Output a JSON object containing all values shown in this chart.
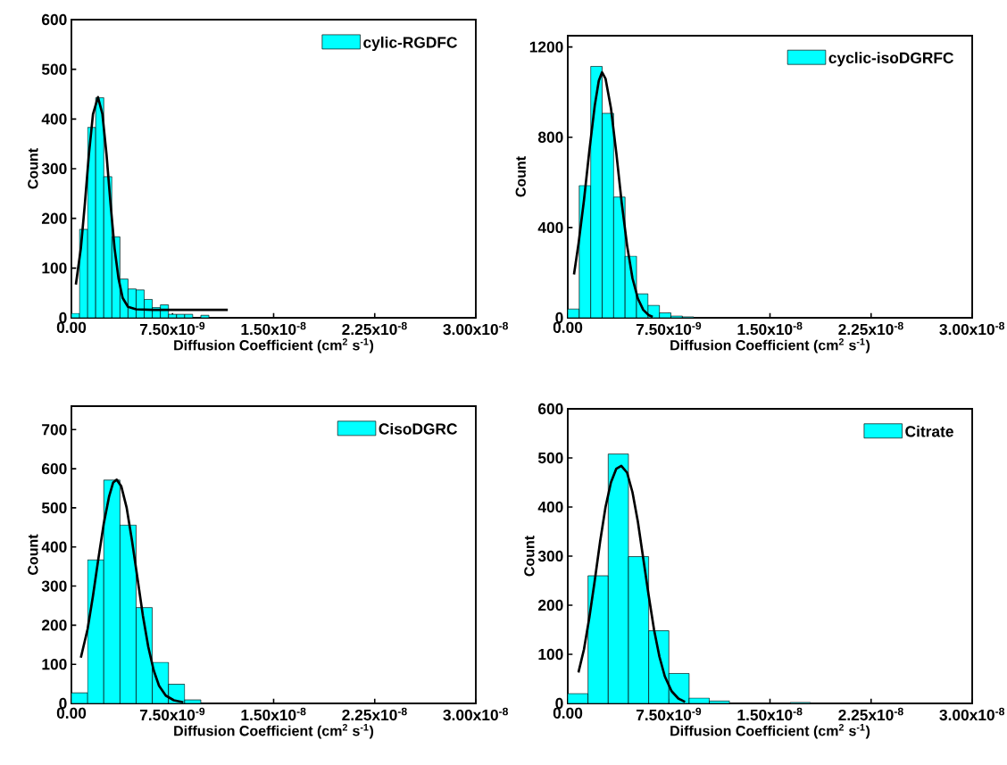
{
  "chart_data": [
    {
      "type": "histogram",
      "xlabel": "Diffusion Coefficient (cm$^{2}$ s$^{-1}$)",
      "ylabel": "Count",
      "legend": "top right",
      "xlim": [
        0,
        3e-08
      ],
      "ylim": [
        0,
        600
      ],
      "xticks": [
        {
          "value": 0,
          "label": "0.00"
        },
        {
          "value": 7.5e-09,
          "label": "7.50x10$^{-9}$"
        },
        {
          "value": 1.5e-08,
          "label": "1.50x10$^{-8}$"
        },
        {
          "value": 2.25e-08,
          "label": "2.25x10$^{-8}$"
        },
        {
          "value": 3e-08,
          "label": "3.00x10$^{-8}$"
        }
      ],
      "yticks": [
        0,
        100,
        200,
        300,
        400,
        500,
        600
      ],
      "series": [
        {
          "type": "histogram",
          "name": "cylic-RGDFC",
          "color": "#00ffff",
          "bins": [
            0,
            6e-10,
            1.2e-09,
            1.8e-09,
            2.4e-09,
            3e-09,
            3.6e-09,
            4.2e-09,
            4.8e-09,
            5.4e-09,
            6e-09,
            6.6e-09,
            7.2e-09,
            7.8e-09,
            8.4e-09,
            9e-09,
            9.6e-09,
            1.02e-08
          ],
          "values": [
            9,
            178,
            383,
            443,
            284,
            163,
            78,
            58,
            56,
            37,
            21,
            26,
            7,
            7,
            7,
            0,
            5
          ]
        },
        {
          "type": "line",
          "color": "#000000",
          "x": [
            3.3e-10,
            7e-10,
            1e-09,
            1.3e-09,
            1.6e-09,
            1.97e-09,
            2.3e-09,
            2.6e-09,
            2.9e-09,
            3.2e-09,
            3.5e-09,
            3.8e-09,
            4.2e-09,
            4.8e-09,
            6e-09,
            8e-09,
            1.16e-08
          ],
          "values": [
            67,
            140,
            230,
            330,
            410,
            444,
            410,
            330,
            230,
            140,
            78,
            40,
            22,
            17,
            16,
            16,
            16
          ]
        }
      ]
    },
    {
      "type": "histogram",
      "xlabel": "Diffusion Coefficient (cm$^{2}$ s$^{-1}$)",
      "ylabel": "Count",
      "legend": "top right",
      "xlim": [
        0,
        3e-08
      ],
      "ylim": [
        0,
        1250
      ],
      "xticks": [
        {
          "value": 0,
          "label": "0.00"
        },
        {
          "value": 7.5e-09,
          "label": "7.50x10$^{-9}$"
        },
        {
          "value": 1.5e-08,
          "label": "1.50x10$^{-8}$"
        },
        {
          "value": 2.25e-08,
          "label": "2.25x10$^{-8}$"
        },
        {
          "value": 3e-08,
          "label": "3.00x10$^{-8}$"
        }
      ],
      "yticks": [
        0,
        400,
        800,
        1200
      ],
      "series": [
        {
          "type": "histogram",
          "name": "cyclic-isoDGRFC",
          "color": "#00ffff",
          "bins": [
            0,
            8.5e-10,
            1.7e-09,
            2.55e-09,
            3.4e-09,
            4.25e-09,
            5.1e-09,
            5.95e-09,
            6.8e-09,
            7.65e-09,
            8.5e-09,
            9.35e-09,
            1.02e-08,
            1.105e-08,
            1.19e-08,
            1.275e-08
          ],
          "values": [
            39,
            586,
            1114,
            906,
            535,
            273,
            106,
            55,
            22,
            8,
            4,
            null,
            0,
            null,
            null
          ]
        },
        {
          "type": "line",
          "color": "#000000",
          "x": [
            4.6e-10,
            8e-10,
            1.2e-09,
            1.6e-09,
            2e-09,
            2.3e-09,
            2.54e-09,
            2.8e-09,
            3.2e-09,
            3.6e-09,
            4e-09,
            4.4e-09,
            4.8e-09,
            5.2e-09,
            5.6e-09,
            6e-09,
            6.3e-09
          ],
          "values": [
            192,
            330,
            520,
            740,
            940,
            1050,
            1088,
            1060,
            930,
            730,
            510,
            320,
            175,
            85,
            35,
            12,
            4
          ]
        }
      ]
    },
    {
      "type": "histogram",
      "xlabel": "Diffusion Coefficient (cm$^{2}$ s$^{-1}$)",
      "ylabel": "Count",
      "legend": "top right",
      "xlim": [
        0,
        3e-08
      ],
      "ylim": [
        0,
        760
      ],
      "xticks": [
        {
          "value": 0,
          "label": "0.00"
        },
        {
          "value": 7.5e-09,
          "label": "7.50x10$^{-9}$"
        },
        {
          "value": 1.5e-08,
          "label": "1.50x10$^{-8}$"
        },
        {
          "value": 2.25e-08,
          "label": "2.25x10$^{-8}$"
        },
        {
          "value": 3e-08,
          "label": "3.00x10$^{-8}$"
        }
      ],
      "yticks": [
        0,
        100,
        200,
        300,
        400,
        500,
        600,
        700
      ],
      "series": [
        {
          "type": "histogram",
          "name": "CisoDGRC",
          "color": "#00ffff",
          "bins": [
            0,
            1.2e-09,
            2.4e-09,
            3.6e-09,
            4.8e-09,
            6e-09,
            7.2e-09,
            8.4e-09,
            9.6e-09
          ],
          "values": [
            27,
            367,
            571,
            456,
            245,
            105,
            49,
            9
          ]
        },
        {
          "type": "line",
          "color": "#000000",
          "x": [
            7e-10,
            1.2e-09,
            1.6e-09,
            2e-09,
            2.4e-09,
            2.8e-09,
            3.1e-09,
            3.36e-09,
            3.7e-09,
            4.1e-09,
            4.5e-09,
            4.9e-09,
            5.3e-09,
            5.7e-09,
            6.1e-09,
            6.5e-09,
            7e-09,
            7.6e-09,
            8.3e-09
          ],
          "values": [
            117,
            190,
            275,
            370,
            460,
            530,
            565,
            572,
            555,
            500,
            415,
            320,
            225,
            145,
            85,
            45,
            20,
            8,
            3
          ]
        }
      ]
    },
    {
      "type": "histogram",
      "xlabel": "Diffusion Coefficient (cm$^{2}$ s$^{-1}$)",
      "ylabel": "Count",
      "legend": "top right",
      "xlim": [
        0,
        3e-08
      ],
      "ylim": [
        0,
        600
      ],
      "xticks": [
        {
          "value": 0,
          "label": "0.00"
        },
        {
          "value": 7.5e-09,
          "label": "7.50x10$^{-9}$"
        },
        {
          "value": 1.5e-08,
          "label": "1.50x10$^{-8}$"
        },
        {
          "value": 2.25e-08,
          "label": "2.25x10$^{-8}$"
        },
        {
          "value": 3e-08,
          "label": "3.00x10$^{-8}$"
        }
      ],
      "yticks": [
        0,
        100,
        200,
        300,
        400,
        500,
        600
      ],
      "series": [
        {
          "type": "histogram",
          "name": "Citrate",
          "color": "#00ffff",
          "bins": [
            0,
            1.5e-09,
            3e-09,
            4.5e-09,
            6e-09,
            7.5e-09,
            9e-09,
            1.05e-08,
            1.2e-08,
            1.35e-08,
            1.5e-08,
            1.65e-08,
            1.8e-08
          ],
          "values": [
            20,
            260,
            508,
            299,
            148,
            61,
            11,
            5,
            0,
            0,
            0,
            2
          ]
        },
        {
          "type": "line",
          "color": "#000000",
          "x": [
            7.9e-10,
            1.2e-09,
            1.6e-09,
            2e-09,
            2.4e-09,
            2.8e-09,
            3.2e-09,
            3.6e-09,
            3.97e-09,
            4.4e-09,
            4.8e-09,
            5.2e-09,
            5.6e-09,
            6e-09,
            6.4e-09,
            6.8e-09,
            7.2e-09,
            7.7e-09,
            8.2e-09,
            8.7e-09
          ],
          "values": [
            63,
            110,
            175,
            250,
            330,
            400,
            450,
            478,
            484,
            470,
            430,
            370,
            295,
            220,
            150,
            95,
            55,
            25,
            10,
            3
          ]
        }
      ]
    }
  ]
}
